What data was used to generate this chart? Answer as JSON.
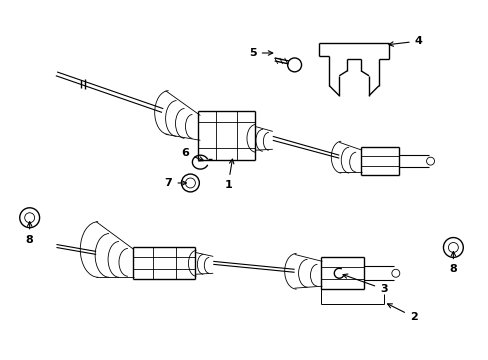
{
  "bg_color": "#ffffff",
  "line_color": "#000000",
  "fig_width": 4.89,
  "fig_height": 3.6,
  "dpi": 100,
  "lw": 1.0,
  "lw_thick": 1.5,
  "lw_thin": 0.6,
  "lw_shaft": 0.8
}
